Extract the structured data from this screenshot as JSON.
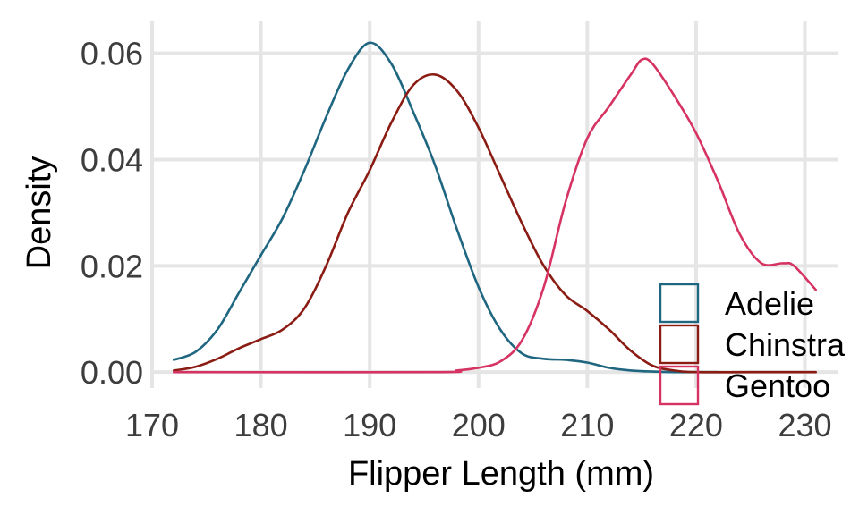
{
  "chart_data": {
    "type": "line",
    "title": "",
    "xlabel": "Flipper Length (mm)",
    "ylabel": "Density",
    "xlim": [
      170,
      233
    ],
    "ylim": [
      -0.003,
      0.066
    ],
    "x_ticks": [
      170,
      180,
      190,
      200,
      210,
      220,
      230
    ],
    "y_ticks": [
      0.0,
      0.02,
      0.04,
      0.06
    ],
    "y_tick_labels": [
      "0.00",
      "0.02",
      "0.04",
      "0.06"
    ],
    "grid": true,
    "legend_position": "bottom-right",
    "series": [
      {
        "name": "Adelie",
        "color": "#1f6680",
        "points": [
          [
            172,
            0.0023
          ],
          [
            174,
            0.0038
          ],
          [
            176,
            0.008
          ],
          [
            178,
            0.015
          ],
          [
            180,
            0.022
          ],
          [
            182,
            0.029
          ],
          [
            184,
            0.038
          ],
          [
            186,
            0.048
          ],
          [
            188,
            0.057
          ],
          [
            190,
            0.062
          ],
          [
            192,
            0.058
          ],
          [
            194,
            0.049
          ],
          [
            196,
            0.039
          ],
          [
            198,
            0.027
          ],
          [
            200,
            0.016
          ],
          [
            202,
            0.008
          ],
          [
            204,
            0.0035
          ],
          [
            206,
            0.0025
          ],
          [
            208,
            0.0023
          ],
          [
            210,
            0.0018
          ],
          [
            212,
            0.0008
          ],
          [
            214,
            0.0003
          ],
          [
            216,
            0.0001
          ],
          [
            218,
            0.0
          ],
          [
            220,
            0.0
          ],
          [
            222,
            0.0
          ]
        ]
      },
      {
        "name": "Chinstra",
        "color": "#8b1c14",
        "points": [
          [
            172,
            0.0003
          ],
          [
            174,
            0.001
          ],
          [
            176,
            0.0025
          ],
          [
            178,
            0.0045
          ],
          [
            180,
            0.0062
          ],
          [
            182,
            0.008
          ],
          [
            184,
            0.012
          ],
          [
            186,
            0.02
          ],
          [
            188,
            0.03
          ],
          [
            190,
            0.038
          ],
          [
            192,
            0.047
          ],
          [
            194,
            0.054
          ],
          [
            196,
            0.056
          ],
          [
            198,
            0.053
          ],
          [
            200,
            0.046
          ],
          [
            202,
            0.037
          ],
          [
            204,
            0.028
          ],
          [
            206,
            0.02
          ],
          [
            208,
            0.0145
          ],
          [
            210,
            0.0115
          ],
          [
            212,
            0.008
          ],
          [
            214,
            0.004
          ],
          [
            216,
            0.0012
          ],
          [
            218,
            0.0003
          ],
          [
            220,
            0.0
          ],
          [
            225,
            0.0
          ],
          [
            231,
            0.0
          ]
        ]
      },
      {
        "name": "Gentoo",
        "color": "#d63363",
        "points": [
          [
            172,
            0.0
          ],
          [
            196,
            0.0
          ],
          [
            198,
            0.0003
          ],
          [
            200,
            0.0008
          ],
          [
            202,
            0.002
          ],
          [
            204,
            0.006
          ],
          [
            206,
            0.016
          ],
          [
            208,
            0.032
          ],
          [
            210,
            0.044
          ],
          [
            212,
            0.05
          ],
          [
            214,
            0.056
          ],
          [
            215,
            0.0588
          ],
          [
            216,
            0.058
          ],
          [
            218,
            0.052
          ],
          [
            220,
            0.045
          ],
          [
            222,
            0.036
          ],
          [
            224,
            0.026
          ],
          [
            226,
            0.0205
          ],
          [
            228,
            0.0205
          ],
          [
            229,
            0.02
          ],
          [
            231,
            0.0155
          ]
        ]
      }
    ]
  }
}
